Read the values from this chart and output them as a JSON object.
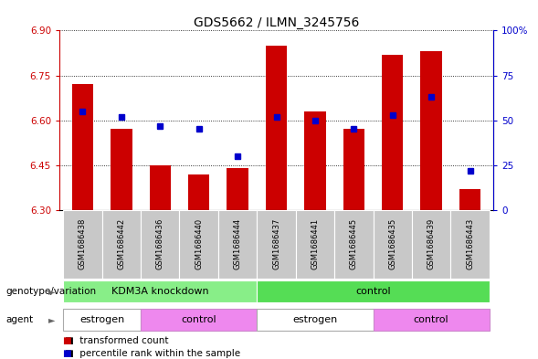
{
  "title": "GDS5662 / ILMN_3245756",
  "samples": [
    "GSM1686438",
    "GSM1686442",
    "GSM1686436",
    "GSM1686440",
    "GSM1686444",
    "GSM1686437",
    "GSM1686441",
    "GSM1686445",
    "GSM1686435",
    "GSM1686439",
    "GSM1686443"
  ],
  "red_values": [
    6.72,
    6.57,
    6.45,
    6.42,
    6.44,
    6.85,
    6.63,
    6.57,
    6.82,
    6.83,
    6.37
  ],
  "blue_values": [
    55,
    52,
    47,
    45,
    30,
    52,
    50,
    45,
    53,
    63,
    22
  ],
  "y_min": 6.3,
  "y_max": 6.9,
  "y_ticks": [
    6.3,
    6.45,
    6.6,
    6.75,
    6.9
  ],
  "y2_ticks": [
    0,
    25,
    50,
    75,
    100
  ],
  "left_color": "#cc0000",
  "right_color": "#0000cc",
  "bar_color": "#cc0000",
  "dot_color": "#0000cc",
  "bar_width": 0.55,
  "genotype_groups": [
    {
      "label": "KDM3A knockdown",
      "start": 0,
      "end": 5,
      "color": "#88ee88"
    },
    {
      "label": "control",
      "start": 5,
      "end": 11,
      "color": "#55dd55"
    }
  ],
  "agent_groups": [
    {
      "label": "estrogen",
      "start": 0,
      "end": 2,
      "color": "#ffffff"
    },
    {
      "label": "control",
      "start": 2,
      "end": 5,
      "color": "#ee88ee"
    },
    {
      "label": "estrogen",
      "start": 5,
      "end": 8,
      "color": "#ffffff"
    },
    {
      "label": "control",
      "start": 8,
      "end": 11,
      "color": "#ee88ee"
    }
  ],
  "legend_red_label": "transformed count",
  "legend_blue_label": "percentile rank within the sample",
  "legend_red_color": "#cc0000",
  "legend_blue_color": "#0000cc",
  "sample_bg_color": "#c8c8c8",
  "sample_font_size": 6.0,
  "title_fontsize": 10,
  "axis_fontsize": 7.5,
  "label_fontsize": 7.5,
  "row_label_fontsize": 7.5
}
